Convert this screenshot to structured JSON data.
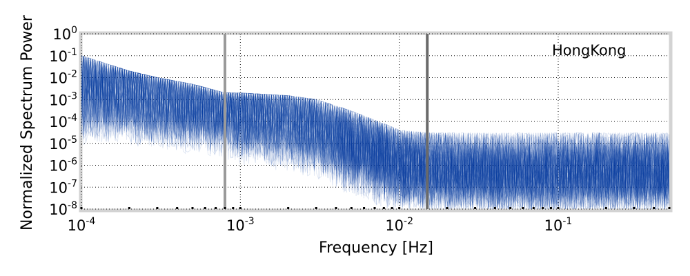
{
  "chart_data": {
    "type": "line",
    "title": "",
    "xlabel": "Frequency [Hz]",
    "ylabel": "Normalized Spectrum Power",
    "x_scale": "log",
    "y_scale": "log",
    "xlim": [
      0.0001,
      0.5
    ],
    "ylim": [
      1e-08,
      1
    ],
    "x_ticks": [
      {
        "base": "10",
        "exp": "-4"
      },
      {
        "base": "10",
        "exp": "-3"
      },
      {
        "base": "10",
        "exp": "-2"
      },
      {
        "base": "10",
        "exp": "-1"
      }
    ],
    "y_ticks": [
      {
        "base": "10",
        "exp": "0"
      },
      {
        "base": "10",
        "exp": "-1"
      },
      {
        "base": "10",
        "exp": "-2"
      },
      {
        "base": "10",
        "exp": "-3"
      },
      {
        "base": "10",
        "exp": "-4"
      },
      {
        "base": "10",
        "exp": "-5"
      },
      {
        "base": "10",
        "exp": "-6"
      },
      {
        "base": "10",
        "exp": "-7"
      },
      {
        "base": "10",
        "exp": "-8"
      }
    ],
    "grid": true,
    "annotation": "HongKong",
    "series_color": "#0a3fa0",
    "vertical_lines": [
      {
        "x": 0.0008,
        "color": "#9a9a9a"
      },
      {
        "x": 0.015,
        "color": "#6a6a6a"
      }
    ],
    "envelope": {
      "x": [
        0.0001,
        0.0002,
        0.0003,
        0.0005,
        0.0008,
        0.001,
        0.002,
        0.003,
        0.005,
        0.008,
        0.01,
        0.015,
        0.02,
        0.05,
        0.1,
        0.2,
        0.5
      ],
      "upper": [
        0.1,
        0.02,
        0.01,
        0.005,
        0.002,
        0.002,
        0.0015,
        0.001,
        0.0003,
        8e-05,
        4e-05,
        3e-05,
        3e-05,
        3e-05,
        3e-05,
        3e-05,
        3e-05
      ],
      "lower": [
        3e-06,
        2e-06,
        1e-06,
        1e-06,
        5e-07,
        3e-07,
        2e-07,
        1e-07,
        5e-08,
        1e-08,
        1e-08,
        1e-08,
        1e-08,
        1e-08,
        1e-08,
        1e-08,
        1e-08
      ],
      "median": [
        0.003,
        0.002,
        0.001,
        0.0005,
        0.0003,
        0.0002,
        0.0001,
        5e-05,
        1e-05,
        3e-06,
        1e-06,
        8e-07,
        6e-07,
        5e-07,
        5e-07,
        5e-07,
        5e-07
      ]
    }
  }
}
